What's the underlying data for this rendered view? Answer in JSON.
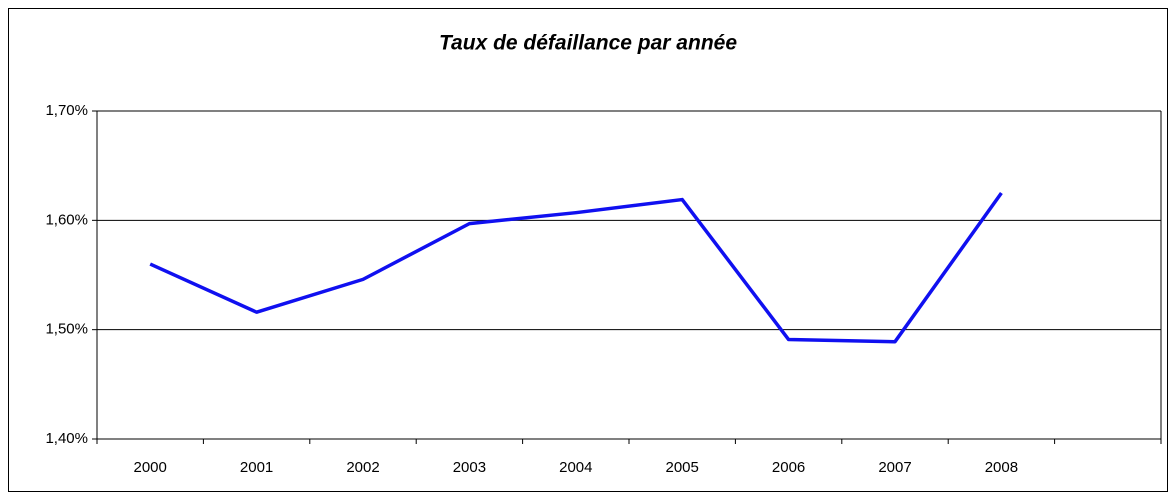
{
  "chart_data": {
    "type": "line",
    "title": "Taux de défaillance par année",
    "categories": [
      "2000",
      "2001",
      "2002",
      "2003",
      "2004",
      "2005",
      "2006",
      "2007",
      "2008",
      null
    ],
    "series": [
      {
        "name": "Taux de défaillance",
        "color": "#1010f0",
        "values": [
          1.56,
          1.516,
          1.546,
          1.597,
          1.607,
          1.619,
          1.491,
          1.489,
          1.625,
          null
        ]
      }
    ],
    "ylim": [
      1.4,
      1.7
    ],
    "yticks": [
      {
        "value": 1.4,
        "label": "1,40%"
      },
      {
        "value": 1.5,
        "label": "1,50%"
      },
      {
        "value": 1.6,
        "label": "1,60%"
      },
      {
        "value": 1.7,
        "label": "1,70%"
      }
    ],
    "grid": true
  }
}
